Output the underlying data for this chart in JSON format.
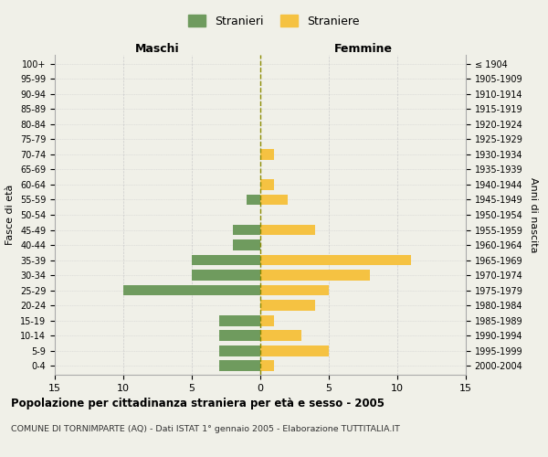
{
  "age_groups": [
    "100+",
    "95-99",
    "90-94",
    "85-89",
    "80-84",
    "75-79",
    "70-74",
    "65-69",
    "60-64",
    "55-59",
    "50-54",
    "45-49",
    "40-44",
    "35-39",
    "30-34",
    "25-29",
    "20-24",
    "15-19",
    "10-14",
    "5-9",
    "0-4"
  ],
  "birth_years": [
    "≤ 1904",
    "1905-1909",
    "1910-1914",
    "1915-1919",
    "1920-1924",
    "1925-1929",
    "1930-1934",
    "1935-1939",
    "1940-1944",
    "1945-1949",
    "1950-1954",
    "1955-1959",
    "1960-1964",
    "1965-1969",
    "1970-1974",
    "1975-1979",
    "1980-1984",
    "1985-1989",
    "1990-1994",
    "1995-1999",
    "2000-2004"
  ],
  "maschi": [
    0,
    0,
    0,
    0,
    0,
    0,
    0,
    0,
    0,
    1,
    0,
    2,
    2,
    5,
    5,
    10,
    0,
    3,
    3,
    3,
    3
  ],
  "femmine": [
    0,
    0,
    0,
    0,
    0,
    0,
    1,
    0,
    1,
    2,
    0,
    4,
    0,
    11,
    8,
    5,
    4,
    1,
    3,
    5,
    1
  ],
  "color_maschi": "#6f9b5e",
  "color_femmine": "#f5c242",
  "background_color": "#f0f0e8",
  "title": "Popolazione per cittadinanza straniera per età e sesso - 2005",
  "subtitle": "COMUNE DI TORNIMPARTE (AQ) - Dati ISTAT 1° gennaio 2005 - Elaborazione TUTTITALIA.IT",
  "xlabel_left": "Maschi",
  "xlabel_right": "Femmine",
  "ylabel_left": "Fasce di età",
  "ylabel_right": "Anni di nascita",
  "legend_maschi": "Stranieri",
  "legend_femmine": "Straniere",
  "xlim": 15
}
